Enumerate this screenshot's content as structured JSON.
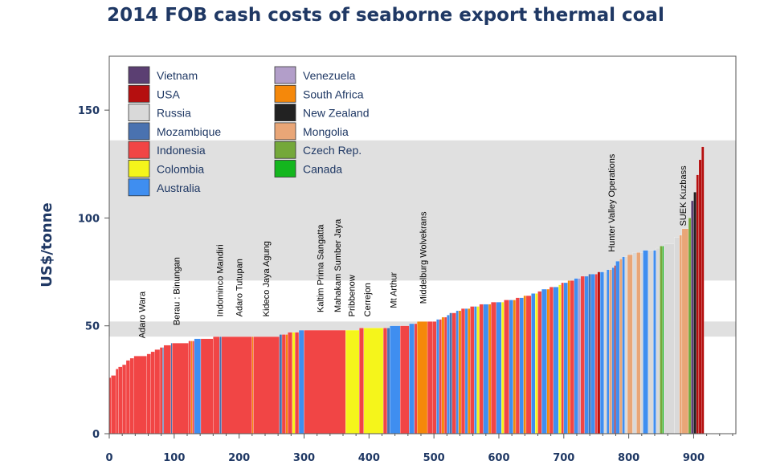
{
  "chart_data": {
    "type": "bar",
    "title": "2014 FOB cash costs of seaborne export thermal coal",
    "xlabel": "",
    "ylabel": "US$/tonne",
    "xlim": [
      0,
      965
    ],
    "ylim": [
      0,
      175
    ],
    "xticks": [
      0,
      100,
      200,
      300,
      400,
      500,
      600,
      700,
      800,
      900
    ],
    "yticks": [
      0,
      50,
      100,
      150
    ],
    "bands": [
      {
        "y0": 71,
        "y1": 136
      },
      {
        "y0": 45,
        "y1": 52
      }
    ],
    "legend": [
      {
        "name": "Vietnam",
        "color": "#5b3f72"
      },
      {
        "name": "USA",
        "color": "#b50f0f"
      },
      {
        "name": "Russia",
        "color": "#d9d9d9"
      },
      {
        "name": "Mozambique",
        "color": "#4a72b0"
      },
      {
        "name": "Indonesia",
        "color": "#f14545"
      },
      {
        "name": "Colombia",
        "color": "#f5f51b"
      },
      {
        "name": "Australia",
        "color": "#3f8ef0"
      },
      {
        "name": "Venezuela",
        "color": "#b29ec9"
      },
      {
        "name": "South Africa",
        "color": "#f5880a"
      },
      {
        "name": "New Zealand",
        "color": "#222222"
      },
      {
        "name": "Mongolia",
        "color": "#e9a677"
      },
      {
        "name": "Czech Rep.",
        "color": "#74a83a"
      },
      {
        "name": "Canada",
        "color": "#14b61e"
      }
    ],
    "annotations": [
      {
        "label": "Adaro Wara",
        "x": 55,
        "y": 42
      },
      {
        "label": "Berau : Binungan",
        "x": 108,
        "y": 48
      },
      {
        "label": "Indominco Mandiri",
        "x": 175,
        "y": 52
      },
      {
        "label": "Adaro Tutupan",
        "x": 205,
        "y": 52
      },
      {
        "label": "Kideco Jaya Agung",
        "x": 246,
        "y": 52
      },
      {
        "label": "Kaltim Prima Sangatta",
        "x": 330,
        "y": 54
      },
      {
        "label": "Mahakam Sumber Jaya",
        "x": 356,
        "y": 54
      },
      {
        "label": "Pribbenow",
        "x": 378,
        "y": 52
      },
      {
        "label": "Cerrejon",
        "x": 402,
        "y": 52
      },
      {
        "label": "Mt Arthur",
        "x": 442,
        "y": 56
      },
      {
        "label": "Middelburg Wolvekrans",
        "x": 488,
        "y": 58
      },
      {
        "label": "Hunter Valley Operations",
        "x": 778,
        "y": 82
      },
      {
        "label": "SUEK Kuzbass",
        "x": 888,
        "y": 94
      }
    ],
    "series": [
      {
        "x0": 0,
        "x1": 3,
        "value": 26,
        "country": "Indonesia"
      },
      {
        "x0": 3,
        "x1": 10,
        "value": 27,
        "country": "Indonesia"
      },
      {
        "x0": 10,
        "x1": 14,
        "value": 30,
        "country": "Indonesia"
      },
      {
        "x0": 14,
        "x1": 20,
        "value": 31,
        "country": "Indonesia"
      },
      {
        "x0": 20,
        "x1": 26,
        "value": 32,
        "country": "Indonesia"
      },
      {
        "x0": 26,
        "x1": 32,
        "value": 34,
        "country": "Indonesia"
      },
      {
        "x0": 32,
        "x1": 38,
        "value": 35,
        "country": "Indonesia"
      },
      {
        "x0": 38,
        "x1": 58,
        "value": 36,
        "country": "Indonesia"
      },
      {
        "x0": 58,
        "x1": 64,
        "value": 37,
        "country": "Indonesia"
      },
      {
        "x0": 64,
        "x1": 70,
        "value": 38,
        "country": "Indonesia"
      },
      {
        "x0": 70,
        "x1": 78,
        "value": 39,
        "country": "Indonesia"
      },
      {
        "x0": 78,
        "x1": 82,
        "value": 40,
        "country": "Indonesia"
      },
      {
        "x0": 82,
        "x1": 84,
        "value": 40,
        "country": "Mozambique"
      },
      {
        "x0": 84,
        "x1": 95,
        "value": 41,
        "country": "Indonesia"
      },
      {
        "x0": 95,
        "x1": 97,
        "value": 42,
        "country": "Mozambique"
      },
      {
        "x0": 97,
        "x1": 122,
        "value": 42,
        "country": "Indonesia"
      },
      {
        "x0": 122,
        "x1": 126,
        "value": 43,
        "country": "Indonesia"
      },
      {
        "x0": 126,
        "x1": 128,
        "value": 43,
        "country": "South Africa"
      },
      {
        "x0": 128,
        "x1": 131,
        "value": 43,
        "country": "Indonesia"
      },
      {
        "x0": 131,
        "x1": 141,
        "value": 44,
        "country": "Australia"
      },
      {
        "x0": 141,
        "x1": 160,
        "value": 44,
        "country": "Indonesia"
      },
      {
        "x0": 160,
        "x1": 170,
        "value": 45,
        "country": "Indonesia"
      },
      {
        "x0": 170,
        "x1": 173,
        "value": 45,
        "country": "Mozambique"
      },
      {
        "x0": 173,
        "x1": 220,
        "value": 45,
        "country": "Indonesia"
      },
      {
        "x0": 220,
        "x1": 222,
        "value": 45,
        "country": "South Africa"
      },
      {
        "x0": 222,
        "x1": 262,
        "value": 45,
        "country": "Indonesia"
      },
      {
        "x0": 262,
        "x1": 266,
        "value": 46,
        "country": "Mozambique"
      },
      {
        "x0": 266,
        "x1": 272,
        "value": 46,
        "country": "Indonesia"
      },
      {
        "x0": 272,
        "x1": 275,
        "value": 46,
        "country": "South Africa"
      },
      {
        "x0": 275,
        "x1": 282,
        "value": 47,
        "country": "Indonesia"
      },
      {
        "x0": 282,
        "x1": 286,
        "value": 47,
        "country": "Colombia"
      },
      {
        "x0": 286,
        "x1": 292,
        "value": 47,
        "country": "Indonesia"
      },
      {
        "x0": 292,
        "x1": 300,
        "value": 48,
        "country": "Australia"
      },
      {
        "x0": 300,
        "x1": 364,
        "value": 48,
        "country": "Indonesia"
      },
      {
        "x0": 364,
        "x1": 385,
        "value": 48,
        "country": "Colombia"
      },
      {
        "x0": 385,
        "x1": 392,
        "value": 49,
        "country": "Indonesia"
      },
      {
        "x0": 392,
        "x1": 422,
        "value": 49,
        "country": "Colombia"
      },
      {
        "x0": 422,
        "x1": 428,
        "value": 49,
        "country": "Indonesia"
      },
      {
        "x0": 428,
        "x1": 432,
        "value": 49,
        "country": "Mozambique"
      },
      {
        "x0": 432,
        "x1": 448,
        "value": 50,
        "country": "Australia"
      },
      {
        "x0": 448,
        "x1": 462,
        "value": 50,
        "country": "Indonesia"
      },
      {
        "x0": 462,
        "x1": 470,
        "value": 51,
        "country": "Australia"
      },
      {
        "x0": 470,
        "x1": 474,
        "value": 51,
        "country": "Indonesia"
      },
      {
        "x0": 474,
        "x1": 490,
        "value": 52,
        "country": "South Africa"
      },
      {
        "x0": 490,
        "x1": 498,
        "value": 52,
        "country": "Indonesia"
      },
      {
        "x0": 498,
        "x1": 504,
        "value": 52,
        "country": "Indonesia"
      },
      {
        "x0": 504,
        "x1": 508,
        "value": 53,
        "country": "Australia"
      },
      {
        "x0": 508,
        "x1": 512,
        "value": 53,
        "country": "Indonesia"
      },
      {
        "x0": 512,
        "x1": 516,
        "value": 54,
        "country": "South Africa"
      },
      {
        "x0": 516,
        "x1": 520,
        "value": 54,
        "country": "Indonesia"
      },
      {
        "x0": 520,
        "x1": 524,
        "value": 55,
        "country": "Australia"
      },
      {
        "x0": 524,
        "x1": 528,
        "value": 56,
        "country": "Mozambique"
      },
      {
        "x0": 528,
        "x1": 534,
        "value": 56,
        "country": "Indonesia"
      },
      {
        "x0": 534,
        "x1": 538,
        "value": 57,
        "country": "Australia"
      },
      {
        "x0": 538,
        "x1": 542,
        "value": 57,
        "country": "South Africa"
      },
      {
        "x0": 542,
        "x1": 548,
        "value": 58,
        "country": "Indonesia"
      },
      {
        "x0": 548,
        "x1": 552,
        "value": 58,
        "country": "Australia"
      },
      {
        "x0": 552,
        "x1": 556,
        "value": 58,
        "country": "South Africa"
      },
      {
        "x0": 556,
        "x1": 562,
        "value": 59,
        "country": "Indonesia"
      },
      {
        "x0": 562,
        "x1": 566,
        "value": 59,
        "country": "Australia"
      },
      {
        "x0": 566,
        "x1": 570,
        "value": 59,
        "country": "Colombia"
      },
      {
        "x0": 570,
        "x1": 576,
        "value": 60,
        "country": "Indonesia"
      },
      {
        "x0": 576,
        "x1": 584,
        "value": 60,
        "country": "Australia"
      },
      {
        "x0": 584,
        "x1": 588,
        "value": 60,
        "country": "South Africa"
      },
      {
        "x0": 588,
        "x1": 596,
        "value": 61,
        "country": "Indonesia"
      },
      {
        "x0": 596,
        "x1": 604,
        "value": 61,
        "country": "Australia"
      },
      {
        "x0": 604,
        "x1": 608,
        "value": 61,
        "country": "Colombia"
      },
      {
        "x0": 608,
        "x1": 616,
        "value": 62,
        "country": "Indonesia"
      },
      {
        "x0": 616,
        "x1": 622,
        "value": 62,
        "country": "Australia"
      },
      {
        "x0": 622,
        "x1": 626,
        "value": 62,
        "country": "South Africa"
      },
      {
        "x0": 626,
        "x1": 632,
        "value": 63,
        "country": "Indonesia"
      },
      {
        "x0": 632,
        "x1": 638,
        "value": 63,
        "country": "Australia"
      },
      {
        "x0": 638,
        "x1": 642,
        "value": 64,
        "country": "South Africa"
      },
      {
        "x0": 642,
        "x1": 650,
        "value": 64,
        "country": "Indonesia"
      },
      {
        "x0": 650,
        "x1": 656,
        "value": 65,
        "country": "Australia"
      },
      {
        "x0": 656,
        "x1": 660,
        "value": 65,
        "country": "Colombia"
      },
      {
        "x0": 660,
        "x1": 666,
        "value": 66,
        "country": "Indonesia"
      },
      {
        "x0": 666,
        "x1": 674,
        "value": 67,
        "country": "Australia"
      },
      {
        "x0": 674,
        "x1": 678,
        "value": 67,
        "country": "South Africa"
      },
      {
        "x0": 678,
        "x1": 684,
        "value": 68,
        "country": "Indonesia"
      },
      {
        "x0": 684,
        "x1": 692,
        "value": 68,
        "country": "Australia"
      },
      {
        "x0": 692,
        "x1": 696,
        "value": 69,
        "country": "Colombia"
      },
      {
        "x0": 696,
        "x1": 700,
        "value": 70,
        "country": "Indonesia"
      },
      {
        "x0": 700,
        "x1": 706,
        "value": 70,
        "country": "Australia"
      },
      {
        "x0": 706,
        "x1": 710,
        "value": 71,
        "country": "South Africa"
      },
      {
        "x0": 710,
        "x1": 716,
        "value": 71,
        "country": "Indonesia"
      },
      {
        "x0": 716,
        "x1": 722,
        "value": 72,
        "country": "Australia"
      },
      {
        "x0": 722,
        "x1": 726,
        "value": 72,
        "country": "Venezuela"
      },
      {
        "x0": 726,
        "x1": 732,
        "value": 73,
        "country": "Indonesia"
      },
      {
        "x0": 732,
        "x1": 738,
        "value": 73,
        "country": "Australia"
      },
      {
        "x0": 738,
        "x1": 742,
        "value": 74,
        "country": "Mozambique"
      },
      {
        "x0": 742,
        "x1": 748,
        "value": 74,
        "country": "Australia"
      },
      {
        "x0": 748,
        "x1": 752,
        "value": 74,
        "country": "Indonesia"
      },
      {
        "x0": 752,
        "x1": 756,
        "value": 75,
        "country": "USA"
      },
      {
        "x0": 756,
        "x1": 762,
        "value": 75,
        "country": "Australia"
      },
      {
        "x0": 762,
        "x1": 766,
        "value": 75,
        "country": "Russia"
      },
      {
        "x0": 766,
        "x1": 770,
        "value": 76,
        "country": "Australia"
      },
      {
        "x0": 770,
        "x1": 774,
        "value": 76,
        "country": "Mongolia"
      },
      {
        "x0": 774,
        "x1": 778,
        "value": 77,
        "country": "Australia"
      },
      {
        "x0": 778,
        "x1": 780,
        "value": 78,
        "country": "USA"
      },
      {
        "x0": 780,
        "x1": 786,
        "value": 80,
        "country": "Australia"
      },
      {
        "x0": 786,
        "x1": 790,
        "value": 81,
        "country": "Mongolia"
      },
      {
        "x0": 790,
        "x1": 794,
        "value": 82,
        "country": "Australia"
      },
      {
        "x0": 794,
        "x1": 798,
        "value": 82,
        "country": "Russia"
      },
      {
        "x0": 798,
        "x1": 806,
        "value": 83,
        "country": "Mongolia"
      },
      {
        "x0": 806,
        "x1": 812,
        "value": 84,
        "country": "Russia"
      },
      {
        "x0": 812,
        "x1": 818,
        "value": 84,
        "country": "Mongolia"
      },
      {
        "x0": 818,
        "x1": 822,
        "value": 84,
        "country": "Russia"
      },
      {
        "x0": 822,
        "x1": 830,
        "value": 85,
        "country": "Australia"
      },
      {
        "x0": 830,
        "x1": 838,
        "value": 85,
        "country": "Russia"
      },
      {
        "x0": 838,
        "x1": 842,
        "value": 85,
        "country": "Australia"
      },
      {
        "x0": 842,
        "x1": 848,
        "value": 86,
        "country": "Russia"
      },
      {
        "x0": 848,
        "x1": 852,
        "value": 87,
        "country": "Czech Rep."
      },
      {
        "x0": 852,
        "x1": 854,
        "value": 87,
        "country": "Canada"
      },
      {
        "x0": 854,
        "x1": 870,
        "value": 88,
        "country": "Russia"
      },
      {
        "x0": 870,
        "x1": 878,
        "value": 91,
        "country": "Russia"
      },
      {
        "x0": 878,
        "x1": 882,
        "value": 92,
        "country": "Mongolia"
      },
      {
        "x0": 882,
        "x1": 892,
        "value": 95,
        "country": "Mongolia"
      },
      {
        "x0": 892,
        "x1": 896,
        "value": 100,
        "country": "Czech Rep."
      },
      {
        "x0": 896,
        "x1": 900,
        "value": 108,
        "country": "Vietnam"
      },
      {
        "x0": 900,
        "x1": 904,
        "value": 112,
        "country": "New Zealand"
      },
      {
        "x0": 904,
        "x1": 908,
        "value": 120,
        "country": "USA"
      },
      {
        "x0": 908,
        "x1": 912,
        "value": 127,
        "country": "USA"
      },
      {
        "x0": 912,
        "x1": 916,
        "value": 133,
        "country": "USA"
      }
    ]
  }
}
